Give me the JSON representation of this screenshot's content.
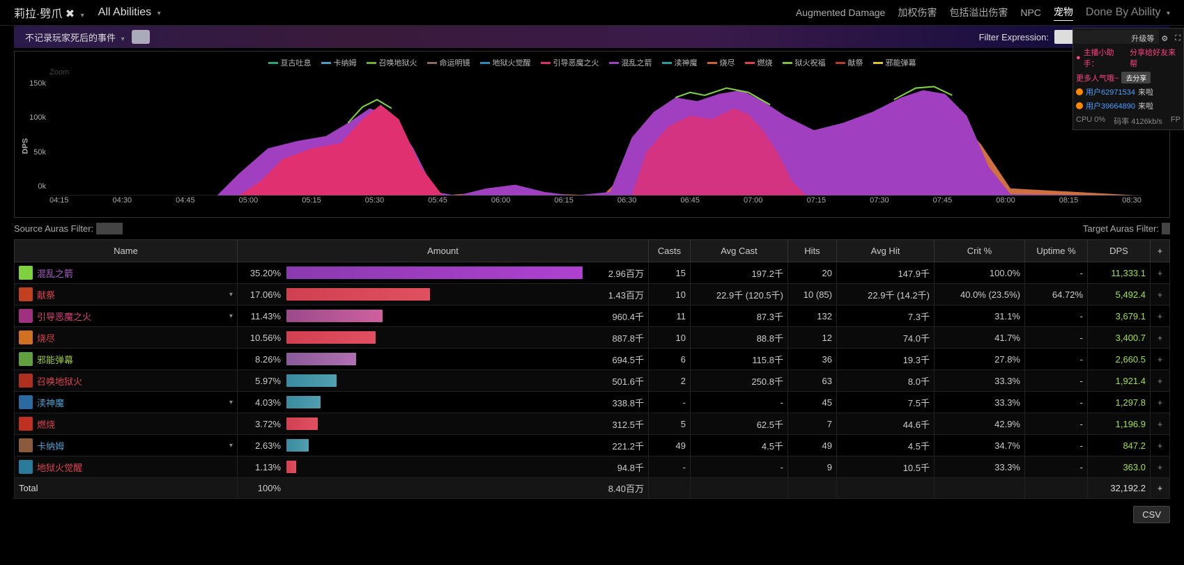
{
  "topbar": {
    "player": "莉拉·劈爪",
    "abilities": "All Abilities",
    "links": [
      "Augmented Damage",
      "加权伤害",
      "包括溢出伤害",
      "NPC",
      "宠物"
    ],
    "active_link": 4,
    "done_by": "Done By Ability"
  },
  "filter": {
    "death_label": "不记录玩家死后的事件",
    "expr_label": "Filter Expression:"
  },
  "overlay": {
    "upgrade": "升级等",
    "host": "主播小助手：",
    "share_text": "分享给好友来帮",
    "more": "更多人气哦~",
    "share_btn": "去分享",
    "users": [
      "用户62971534",
      "用户39664890"
    ],
    "came": "来啦",
    "cpu": "CPU 0%",
    "bitrate": "码率 4126kb/s",
    "fp": "FP"
  },
  "chart": {
    "zoom": "Zoom",
    "ylabel": "DPS",
    "yticks": [
      "150k",
      "100k",
      "50k",
      "0k"
    ],
    "xticks": [
      "04:15",
      "04:30",
      "04:45",
      "05:00",
      "05:15",
      "05:30",
      "05:45",
      "06:00",
      "06:15",
      "06:30",
      "06:45",
      "07:00",
      "07:15",
      "07:30",
      "07:45",
      "08:00",
      "08:15",
      "08:30"
    ],
    "legend": [
      {
        "label": "亘古吐息",
        "color": "#2aa876"
      },
      {
        "label": "卡纳姆",
        "color": "#4a9ec4"
      },
      {
        "label": "召唤地狱火",
        "color": "#70b030"
      },
      {
        "label": "命运明镜",
        "color": "#8a6a5a"
      },
      {
        "label": "地狱火觉醒",
        "color": "#2a8aba"
      },
      {
        "label": "引导恶魔之火",
        "color": "#e03070"
      },
      {
        "label": "混乱之箭",
        "color": "#a040c0"
      },
      {
        "label": "渎神魔",
        "color": "#20a0a0"
      },
      {
        "label": "烧尽",
        "color": "#d06030"
      },
      {
        "label": "燃烧",
        "color": "#e04050"
      },
      {
        "label": "狱火祝福",
        "color": "#80c040"
      },
      {
        "label": "献祭",
        "color": "#c03828"
      },
      {
        "label": "邪能弹幕",
        "color": "#e0c030"
      }
    ]
  },
  "auras": {
    "src_label": "Source Auras Filter:",
    "tgt_label": "Target Auras Filter:",
    "src_colors": [
      "#4a3a7a",
      "#d08030",
      "#a03030",
      "#305080",
      "#3a6aaa",
      "#b09020",
      "#305030",
      "#70d040",
      "#5a3a8a",
      "#80a030",
      "#4a9070",
      "#5a4a30",
      "#708030",
      "#3a8a6a",
      "#40a050",
      "#5a6a3a",
      "#30507a",
      "#507a30",
      "#a05a30"
    ],
    "tgt_colors": [
      "#b08030",
      "#7a2a2a",
      "#5a4a7a",
      "#60a060",
      "#7a3a3a",
      "#3a7a3a"
    ]
  },
  "table": {
    "headers": [
      "Name",
      "Amount",
      "Casts",
      "Avg Cast",
      "Hits",
      "Avg Hit",
      "Crit %",
      "Uptime %",
      "DPS",
      "+"
    ],
    "rows": [
      {
        "icon": "#80d040",
        "name": "混乱之箭",
        "name_color": "#b060d0",
        "expand": false,
        "pct": "35.20%",
        "bar": 35.2,
        "bar_color": "linear-gradient(90deg,#8a3ab0,#b040d0)",
        "amount": "2.96百万",
        "casts": "15",
        "avg_cast": "197.2千",
        "hits": "20",
        "avg_hit": "147.9千",
        "crit": "100.0%",
        "uptime": "-",
        "dps": "11,333.1"
      },
      {
        "icon": "#c04020",
        "name": "献祭",
        "name_color": "#e04050",
        "expand": true,
        "pct": "17.06%",
        "bar": 17.06,
        "bar_color": "linear-gradient(90deg,#d04050,#e05060)",
        "amount": "1.43百万",
        "casts": "10",
        "avg_cast": "22.9千 (120.5千)",
        "hits": "10 (85)",
        "avg_hit": "22.9千 (14.2千)",
        "crit": "40.0% (23.5%)",
        "uptime": "64.72%",
        "dps": "5,492.4"
      },
      {
        "icon": "#a03080",
        "name": "引导恶魔之火",
        "name_color": "#e04080",
        "expand": true,
        "pct": "11.43%",
        "bar": 11.43,
        "bar_color": "linear-gradient(90deg,#9a4a8a,#d060a0)",
        "amount": "960.4千",
        "casts": "11",
        "avg_cast": "87.3千",
        "hits": "132",
        "avg_hit": "7.3千",
        "crit": "31.1%",
        "uptime": "-",
        "dps": "3,679.1"
      },
      {
        "icon": "#d07020",
        "name": "烧尽",
        "name_color": "#e04050",
        "expand": false,
        "pct": "10.56%",
        "bar": 10.56,
        "bar_color": "linear-gradient(90deg,#d04050,#e05060)",
        "amount": "887.8千",
        "casts": "10",
        "avg_cast": "88.8千",
        "hits": "12",
        "avg_hit": "74.0千",
        "crit": "41.7%",
        "uptime": "-",
        "dps": "3,400.7"
      },
      {
        "icon": "#60a040",
        "name": "邪能弹幕",
        "name_color": "#a0d040",
        "expand": false,
        "pct": "8.26%",
        "bar": 8.26,
        "bar_color": "linear-gradient(90deg,#8a5a9a,#b070b0)",
        "amount": "694.5千",
        "casts": "6",
        "avg_cast": "115.8千",
        "hits": "36",
        "avg_hit": "19.3千",
        "crit": "27.8%",
        "uptime": "-",
        "dps": "2,660.5"
      },
      {
        "icon": "#b03020",
        "name": "召唤地狱火",
        "name_color": "#e04050",
        "expand": false,
        "pct": "5.97%",
        "bar": 5.97,
        "bar_color": "linear-gradient(90deg,#3a8aa0,#50a0b0)",
        "amount": "501.6千",
        "casts": "2",
        "avg_cast": "250.8千",
        "hits": "63",
        "avg_hit": "8.0千",
        "crit": "33.3%",
        "uptime": "-",
        "dps": "1,921.4"
      },
      {
        "icon": "#2a6aa0",
        "name": "渎神魔",
        "name_color": "#50a0d0",
        "expand": true,
        "pct": "4.03%",
        "bar": 4.03,
        "bar_color": "linear-gradient(90deg,#3a8aa0,#50a0b0)",
        "amount": "338.8千",
        "casts": "-",
        "avg_cast": "-",
        "hits": "45",
        "avg_hit": "7.5千",
        "crit": "33.3%",
        "uptime": "-",
        "dps": "1,297.8"
      },
      {
        "icon": "#c03020",
        "name": "燃烧",
        "name_color": "#e04050",
        "expand": false,
        "pct": "3.72%",
        "bar": 3.72,
        "bar_color": "linear-gradient(90deg,#d04050,#e05060)",
        "amount": "312.5千",
        "casts": "5",
        "avg_cast": "62.5千",
        "hits": "7",
        "avg_hit": "44.6千",
        "crit": "42.9%",
        "uptime": "-",
        "dps": "1,196.9"
      },
      {
        "icon": "#8a5a3a",
        "name": "卡纳姆",
        "name_color": "#50a0d0",
        "expand": true,
        "pct": "2.63%",
        "bar": 2.63,
        "bar_color": "linear-gradient(90deg,#3a8aa0,#50a0b0)",
        "amount": "221.2千",
        "casts": "49",
        "avg_cast": "4.5千",
        "hits": "49",
        "avg_hit": "4.5千",
        "crit": "34.7%",
        "uptime": "-",
        "dps": "847.2"
      },
      {
        "icon": "#2a7a9a",
        "name": "地狱火觉醒",
        "name_color": "#e04050",
        "expand": false,
        "pct": "1.13%",
        "bar": 1.13,
        "bar_color": "linear-gradient(90deg,#d04050,#e05060)",
        "amount": "94.8千",
        "casts": "-",
        "avg_cast": "-",
        "hits": "9",
        "avg_hit": "10.5千",
        "crit": "33.3%",
        "uptime": "-",
        "dps": "363.0"
      }
    ],
    "total": {
      "label": "Total",
      "pct": "100%",
      "amount": "8.40百万",
      "dps": "32,192.2"
    }
  },
  "csv": "CSV"
}
